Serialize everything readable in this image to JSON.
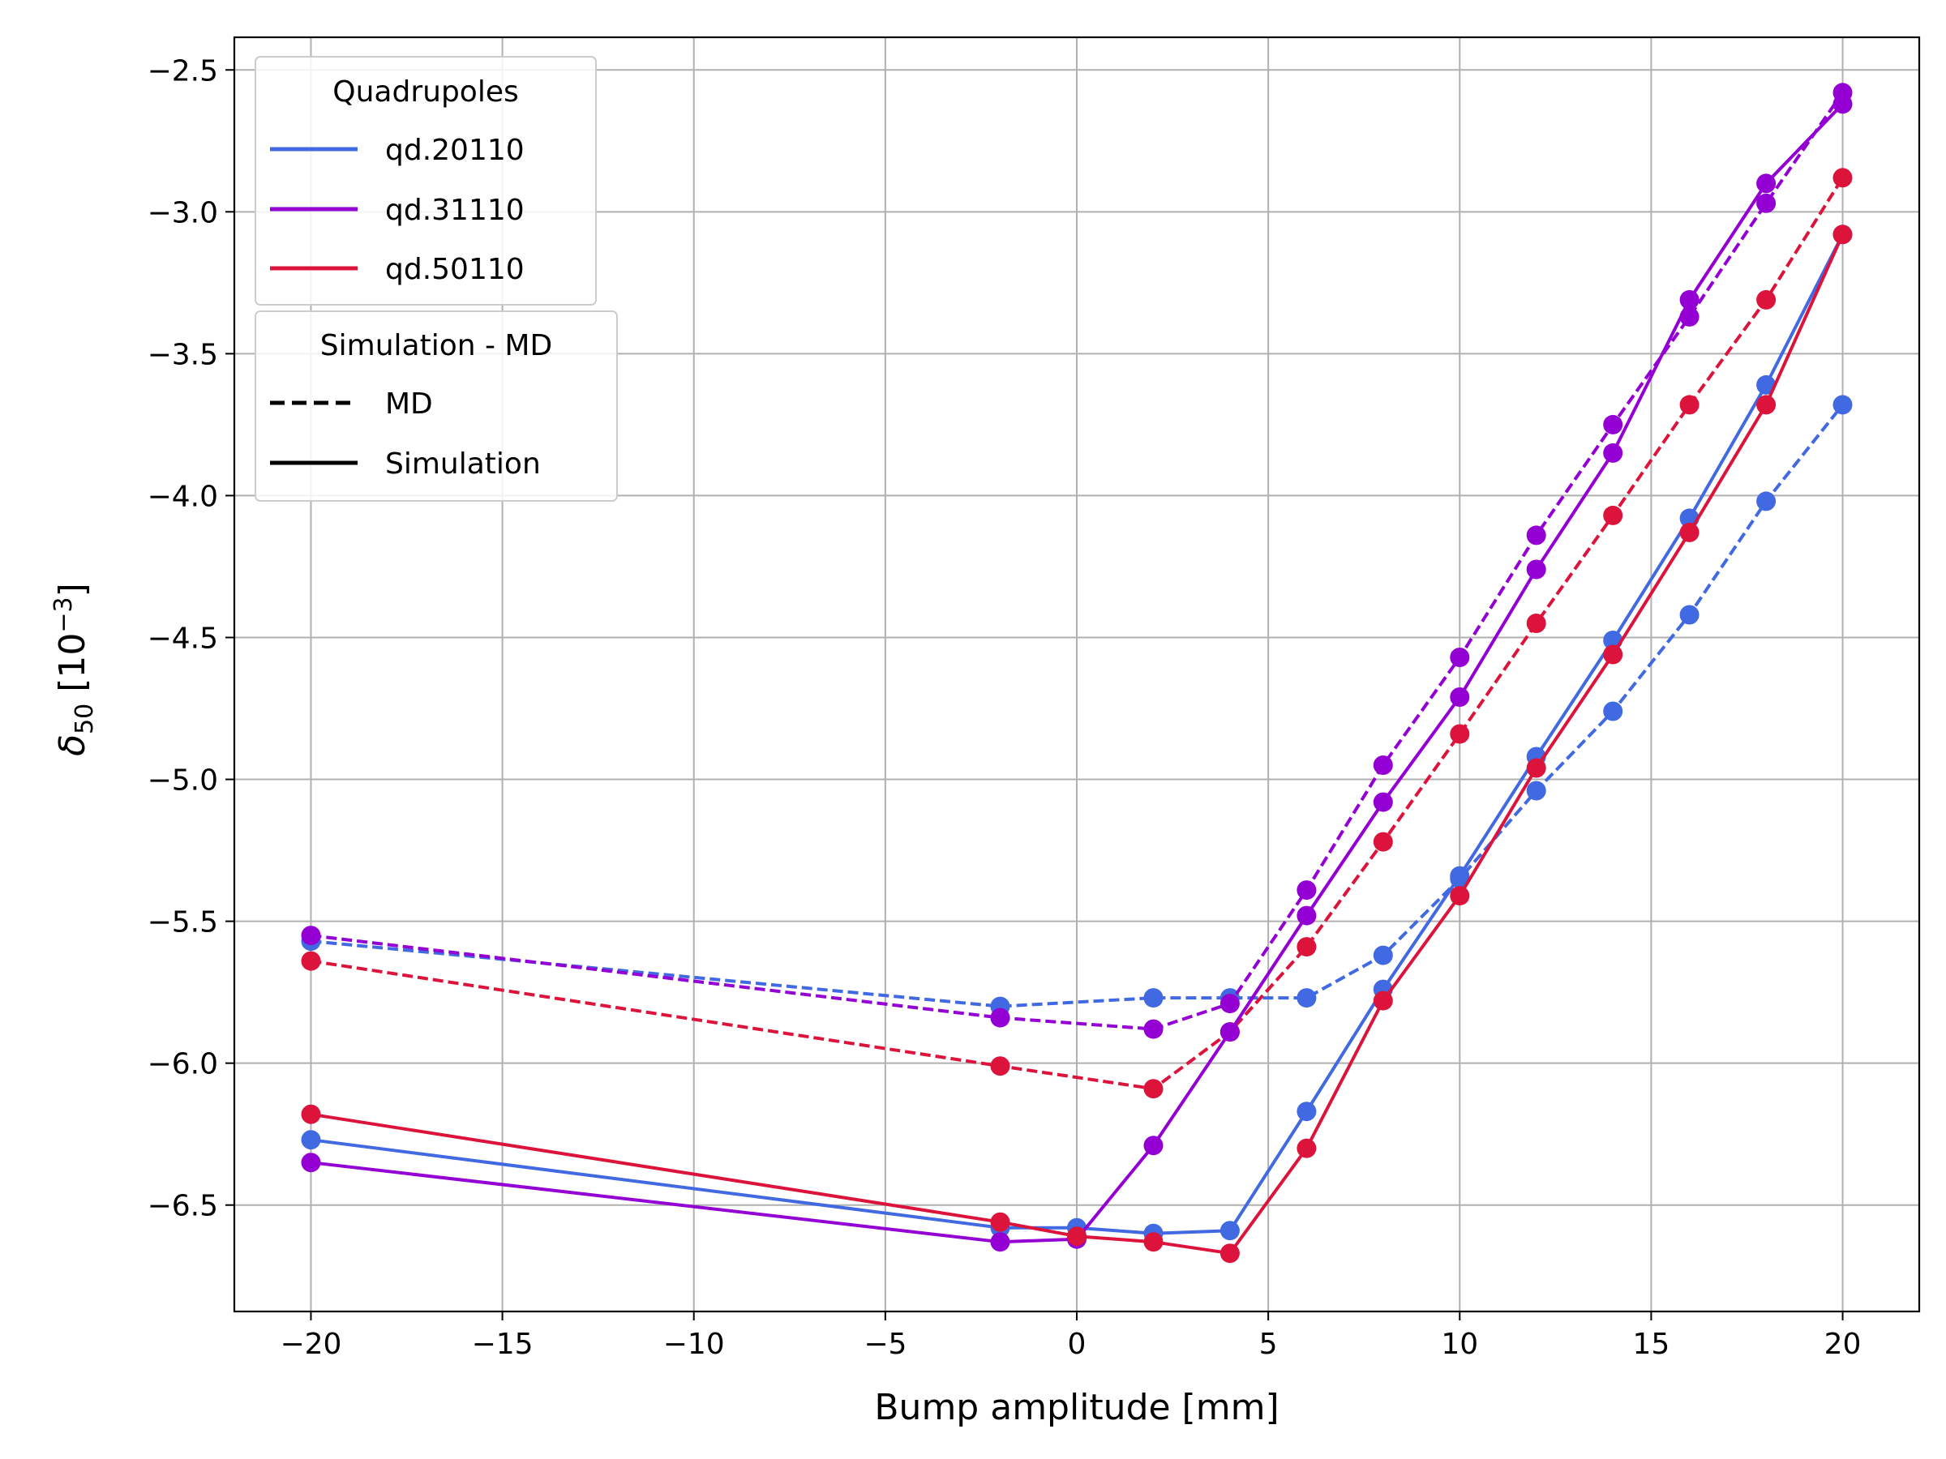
{
  "chart_data": {
    "type": "line",
    "xlabel": "Bump amplitude [mm]",
    "ylabel": "δ50 [10−3]",
    "ylabel_parts": {
      "symbol": "δ",
      "subscript": "50",
      "unit_open": " [10",
      "unit_sup": "−3",
      "unit_close": "]"
    },
    "xlim": [
      -22,
      22
    ],
    "ylim": [
      -6.875,
      -2.385
    ],
    "xticks": [
      -20,
      -15,
      -10,
      -5,
      0,
      5,
      10,
      15,
      20
    ],
    "xtick_labels": [
      "−20",
      "−15",
      "−10",
      "−5",
      "0",
      "5",
      "10",
      "15",
      "20"
    ],
    "yticks": [
      -2.5,
      -3.0,
      -3.5,
      -4.0,
      -4.5,
      -5.0,
      -5.5,
      -6.0,
      -6.5
    ],
    "ytick_labels": [
      "−2.5",
      "−3.0",
      "−3.5",
      "−4.0",
      "−4.5",
      "−5.0",
      "−5.5",
      "−6.0",
      "−6.5"
    ],
    "grid": true,
    "colors": {
      "qd.20110": "#4169e1",
      "qd.31110": "#9400d3",
      "qd.50110": "#dc143c"
    },
    "legends": [
      {
        "title": "Quadrupoles",
        "placement": "top-left",
        "entries": [
          {
            "label": "qd.20110",
            "color": "#4169e1",
            "style": "solid"
          },
          {
            "label": "qd.31110",
            "color": "#9400d3",
            "style": "solid"
          },
          {
            "label": "qd.50110",
            "color": "#dc143c",
            "style": "solid"
          }
        ]
      },
      {
        "title": "Simulation - MD",
        "placement": "upper-left",
        "entries": [
          {
            "label": "MD",
            "color": "#000000",
            "style": "dashed"
          },
          {
            "label": "Simulation",
            "color": "#000000",
            "style": "solid"
          }
        ]
      }
    ],
    "series": [
      {
        "quadrupole": "qd.20110",
        "kind": "MD",
        "color": "#4169e1",
        "style": "dashed",
        "x": [
          -20,
          -2,
          2,
          4,
          6,
          8,
          10,
          12,
          14,
          16,
          18,
          20
        ],
        "y": [
          -5.57,
          -5.8,
          -5.77,
          -5.77,
          -5.77,
          -5.62,
          -5.35,
          -5.04,
          -4.76,
          -4.42,
          -4.02,
          -3.68
        ]
      },
      {
        "quadrupole": "qd.31110",
        "kind": "MD",
        "color": "#9400d3",
        "style": "dashed",
        "x": [
          -20,
          -2,
          2,
          4,
          6,
          8,
          10,
          12,
          14,
          16,
          18,
          20
        ],
        "y": [
          -5.55,
          -5.84,
          -5.88,
          -5.79,
          -5.39,
          -4.95,
          -4.57,
          -4.14,
          -3.75,
          -3.37,
          -2.97,
          -2.58
        ]
      },
      {
        "quadrupole": "qd.50110",
        "kind": "MD",
        "color": "#dc143c",
        "style": "dashed",
        "x": [
          -20,
          -2,
          2,
          4,
          6,
          8,
          10,
          12,
          14,
          16,
          18,
          20
        ],
        "y": [
          -5.64,
          -6.01,
          -6.09,
          -5.89,
          -5.59,
          -5.22,
          -4.84,
          -4.45,
          -4.07,
          -3.68,
          -3.31,
          -2.88
        ]
      },
      {
        "quadrupole": "qd.20110",
        "kind": "Simulation",
        "color": "#4169e1",
        "style": "solid",
        "x": [
          -20,
          -2,
          0,
          2,
          4,
          6,
          8,
          10,
          12,
          14,
          16,
          18,
          20
        ],
        "y": [
          -6.27,
          -6.58,
          -6.58,
          -6.6,
          -6.59,
          -6.17,
          -5.74,
          -5.34,
          -4.92,
          -4.51,
          -4.08,
          -3.61,
          -3.08
        ]
      },
      {
        "quadrupole": "qd.31110",
        "kind": "Simulation",
        "color": "#9400d3",
        "style": "solid",
        "x": [
          -20,
          -2,
          0,
          2,
          4,
          6,
          8,
          10,
          12,
          14,
          16,
          18,
          20
        ],
        "y": [
          -6.35,
          -6.63,
          -6.62,
          -6.29,
          -5.89,
          -5.48,
          -5.08,
          -4.71,
          -4.26,
          -3.85,
          -3.31,
          -2.9,
          -2.62
        ]
      },
      {
        "quadrupole": "qd.50110",
        "kind": "Simulation",
        "color": "#dc143c",
        "style": "solid",
        "x": [
          -20,
          -2,
          0,
          2,
          4,
          6,
          8,
          10,
          12,
          14,
          16,
          18,
          20
        ],
        "y": [
          -6.18,
          -6.56,
          -6.61,
          -6.63,
          -6.67,
          -6.3,
          -5.78,
          -5.41,
          -4.96,
          -4.56,
          -4.13,
          -3.68,
          -3.08
        ]
      }
    ]
  }
}
